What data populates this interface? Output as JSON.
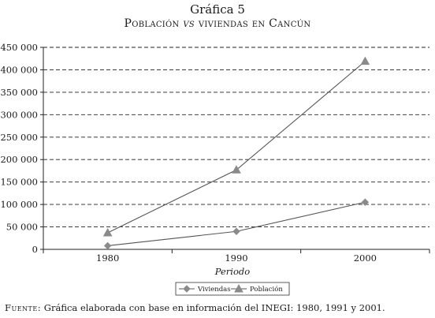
{
  "header": {
    "title": "Gráfica 5",
    "subtitle_a": "Población ",
    "subtitle_vs": "vs",
    "subtitle_b": " viviendas en Cancún"
  },
  "chart_data": {
    "type": "line",
    "categories": [
      "1980",
      "1990",
      "2000"
    ],
    "xlabel": "Periodo",
    "ylabel": "",
    "ylim": [
      0,
      450000
    ],
    "yticks": [
      0,
      50000,
      100000,
      150000,
      200000,
      250000,
      300000,
      350000,
      400000,
      450000
    ],
    "ytick_labels": [
      "0",
      "50 000",
      "100 000",
      "150 000",
      "200 000",
      "250 000",
      "300 000",
      "350 000",
      "400 000",
      "450 000"
    ],
    "grid": "horizontal dashed",
    "legend_position": "bottom-center",
    "series": [
      {
        "name": "Viviendas",
        "marker": "diamond",
        "color": "#8a8a8a",
        "values": [
          8000,
          40000,
          105000
        ]
      },
      {
        "name": "Población",
        "marker": "triangle",
        "color": "#8a8a8a",
        "values": [
          37000,
          177000,
          419000
        ]
      }
    ]
  },
  "footer": {
    "source_label": "Fuente:",
    "source_text": " Gráfica elaborada con base en información del INEGI: 1980, 1991 y 2001."
  }
}
